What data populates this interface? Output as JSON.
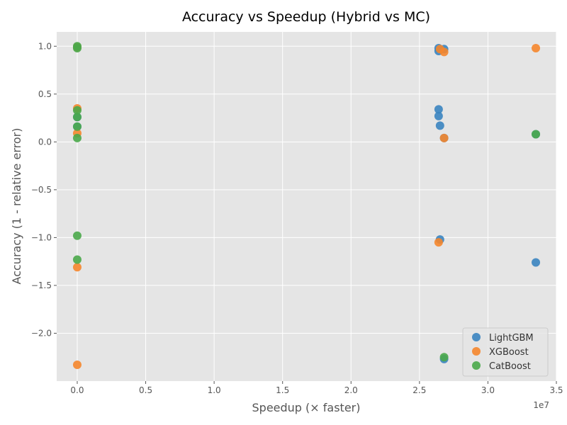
{
  "chart_data": {
    "type": "scatter",
    "title": "Accuracy vs Speedup (Hybrid vs MC)",
    "xlabel": "Speedup (× faster)",
    "ylabel": "Accuracy (1 - relative error)",
    "x_offset_label": "1e7",
    "xlim": [
      -0.15,
      3.5
    ],
    "ylim": [
      -2.5,
      1.15
    ],
    "x_ticks": [
      0.0,
      0.5,
      1.0,
      1.5,
      2.0,
      2.5,
      3.0,
      3.5
    ],
    "x_tick_labels": [
      "0.0",
      "0.5",
      "1.0",
      "1.5",
      "2.0",
      "2.5",
      "3.0",
      "3.5"
    ],
    "y_ticks": [
      -2.0,
      -1.5,
      -1.0,
      -0.5,
      0.0,
      0.5,
      1.0
    ],
    "y_tick_labels": [
      "−2.0",
      "−1.5",
      "−1.0",
      "−0.5",
      "0.0",
      "0.5",
      "1.0"
    ],
    "grid": true,
    "legend_position": "lower-right",
    "series": [
      {
        "name": "LightGBM",
        "color": "#3a84c0",
        "points": [
          {
            "x": 2.64,
            "y": 0.98
          },
          {
            "x": 2.68,
            "y": 0.97
          },
          {
            "x": 2.64,
            "y": 0.95
          },
          {
            "x": 2.64,
            "y": 0.34
          },
          {
            "x": 2.64,
            "y": 0.27
          },
          {
            "x": 2.65,
            "y": 0.17
          },
          {
            "x": 2.68,
            "y": 0.04
          },
          {
            "x": 2.65,
            "y": -1.02
          },
          {
            "x": 2.68,
            "y": -2.27
          },
          {
            "x": 3.35,
            "y": -1.26
          },
          {
            "x": 3.35,
            "y": 0.08
          },
          {
            "x": 0.0,
            "y": 0.99
          },
          {
            "x": 0.0,
            "y": 0.26
          },
          {
            "x": 0.0,
            "y": 0.16
          }
        ]
      },
      {
        "name": "XGBoost",
        "color": "#f5862c",
        "points": [
          {
            "x": 0.0,
            "y": 0.99
          },
          {
            "x": 0.0,
            "y": 0.35
          },
          {
            "x": 0.0,
            "y": 0.09
          },
          {
            "x": 0.0,
            "y": -1.31
          },
          {
            "x": 0.0,
            "y": -2.33
          },
          {
            "x": 2.65,
            "y": 0.97
          },
          {
            "x": 2.68,
            "y": 0.94
          },
          {
            "x": 2.68,
            "y": 0.04
          },
          {
            "x": 2.64,
            "y": -1.05
          },
          {
            "x": 3.35,
            "y": 0.98
          }
        ]
      },
      {
        "name": "CatBoost",
        "color": "#4aa84a",
        "points": [
          {
            "x": 0.0,
            "y": 1.0
          },
          {
            "x": 0.0,
            "y": 0.98
          },
          {
            "x": 0.0,
            "y": 0.33
          },
          {
            "x": 0.0,
            "y": 0.26
          },
          {
            "x": 0.0,
            "y": 0.16
          },
          {
            "x": 0.0,
            "y": 0.04
          },
          {
            "x": 0.0,
            "y": -0.98
          },
          {
            "x": 0.0,
            "y": -1.23
          },
          {
            "x": 2.68,
            "y": -2.25
          },
          {
            "x": 3.35,
            "y": 0.08
          }
        ]
      }
    ]
  }
}
